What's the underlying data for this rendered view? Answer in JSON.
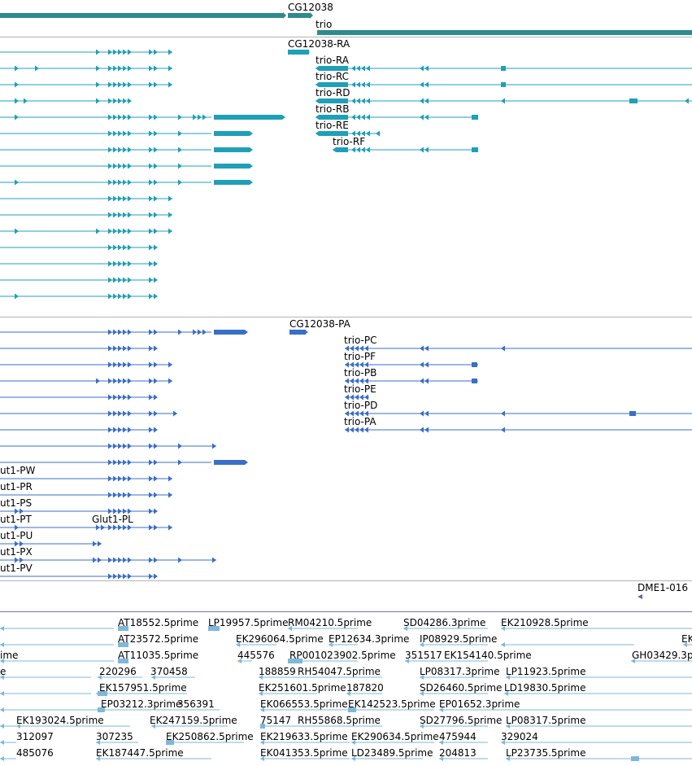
{
  "colors": {
    "gene": "#2e8b8b",
    "transcript": "#1fa0b8",
    "protein": "#3a6fc8",
    "est": "#7fb7d9",
    "marker": "#7b5ba0"
  },
  "gene_track": {
    "labels": [
      "CG12038",
      "trio"
    ]
  },
  "transcript_track": {
    "labels": [
      "CG12038-RA",
      "trio-RA",
      "trio-RC",
      "trio-RD",
      "trio-RB",
      "trio-RE",
      "trio-RF"
    ]
  },
  "protein_track": {
    "labels": [
      "CG12038-PA",
      "trio-PC",
      "trio-PF",
      "trio-PB",
      "trio-PE",
      "trio-PD",
      "trio-PA",
      "ut1-PW",
      "ut1-PR",
      "ut1-PS",
      "ut1-PT",
      "Glut1-PL",
      "ut1-PU",
      "ut1-PX",
      "ut1-PV"
    ]
  },
  "marker_track": {
    "label": "DME1-016"
  },
  "est_track": {
    "labels": [
      "AT18552.5prime",
      "LP19957.5prime",
      "RM04210.5prime",
      "SD04286.3prime",
      "EK210928.5prime",
      "AT23572.5prime",
      "EK296064.5prime",
      "EP12634.3prime",
      "IP08929.5prime",
      "EK",
      "ime",
      "AT11035.5prime",
      "445576",
      "RP001023902.5prime",
      "351517",
      "EK154140.5prime",
      "GH03429.3p",
      "e",
      "220296",
      "370458",
      "188859",
      "RH54047.5prime",
      "LP08317.3prime",
      "LP11923.5prime",
      "EK157951.5prime",
      "EK251601.5prime",
      "187820",
      "SD26460.5prime",
      "LD19830.5prime",
      "EP03212.3prime",
      "356391",
      "EK066553.5prime",
      "EK142523.5prime",
      "EP01652.3prime",
      "EK193024.5prime",
      "EK247159.5prime",
      "75147",
      "RH55868.5prime",
      "SD27796.5prime",
      "LP08317.5prime",
      "312097",
      "307235",
      "EK250862.5prime",
      "EK219633.5prime",
      "EK290634.5prime",
      "475944",
      "329024",
      "485076",
      "EK187447.5prime",
      "EK041353.5prime",
      "LD23489.5prime",
      "204813",
      "LP23735.5prime"
    ]
  }
}
